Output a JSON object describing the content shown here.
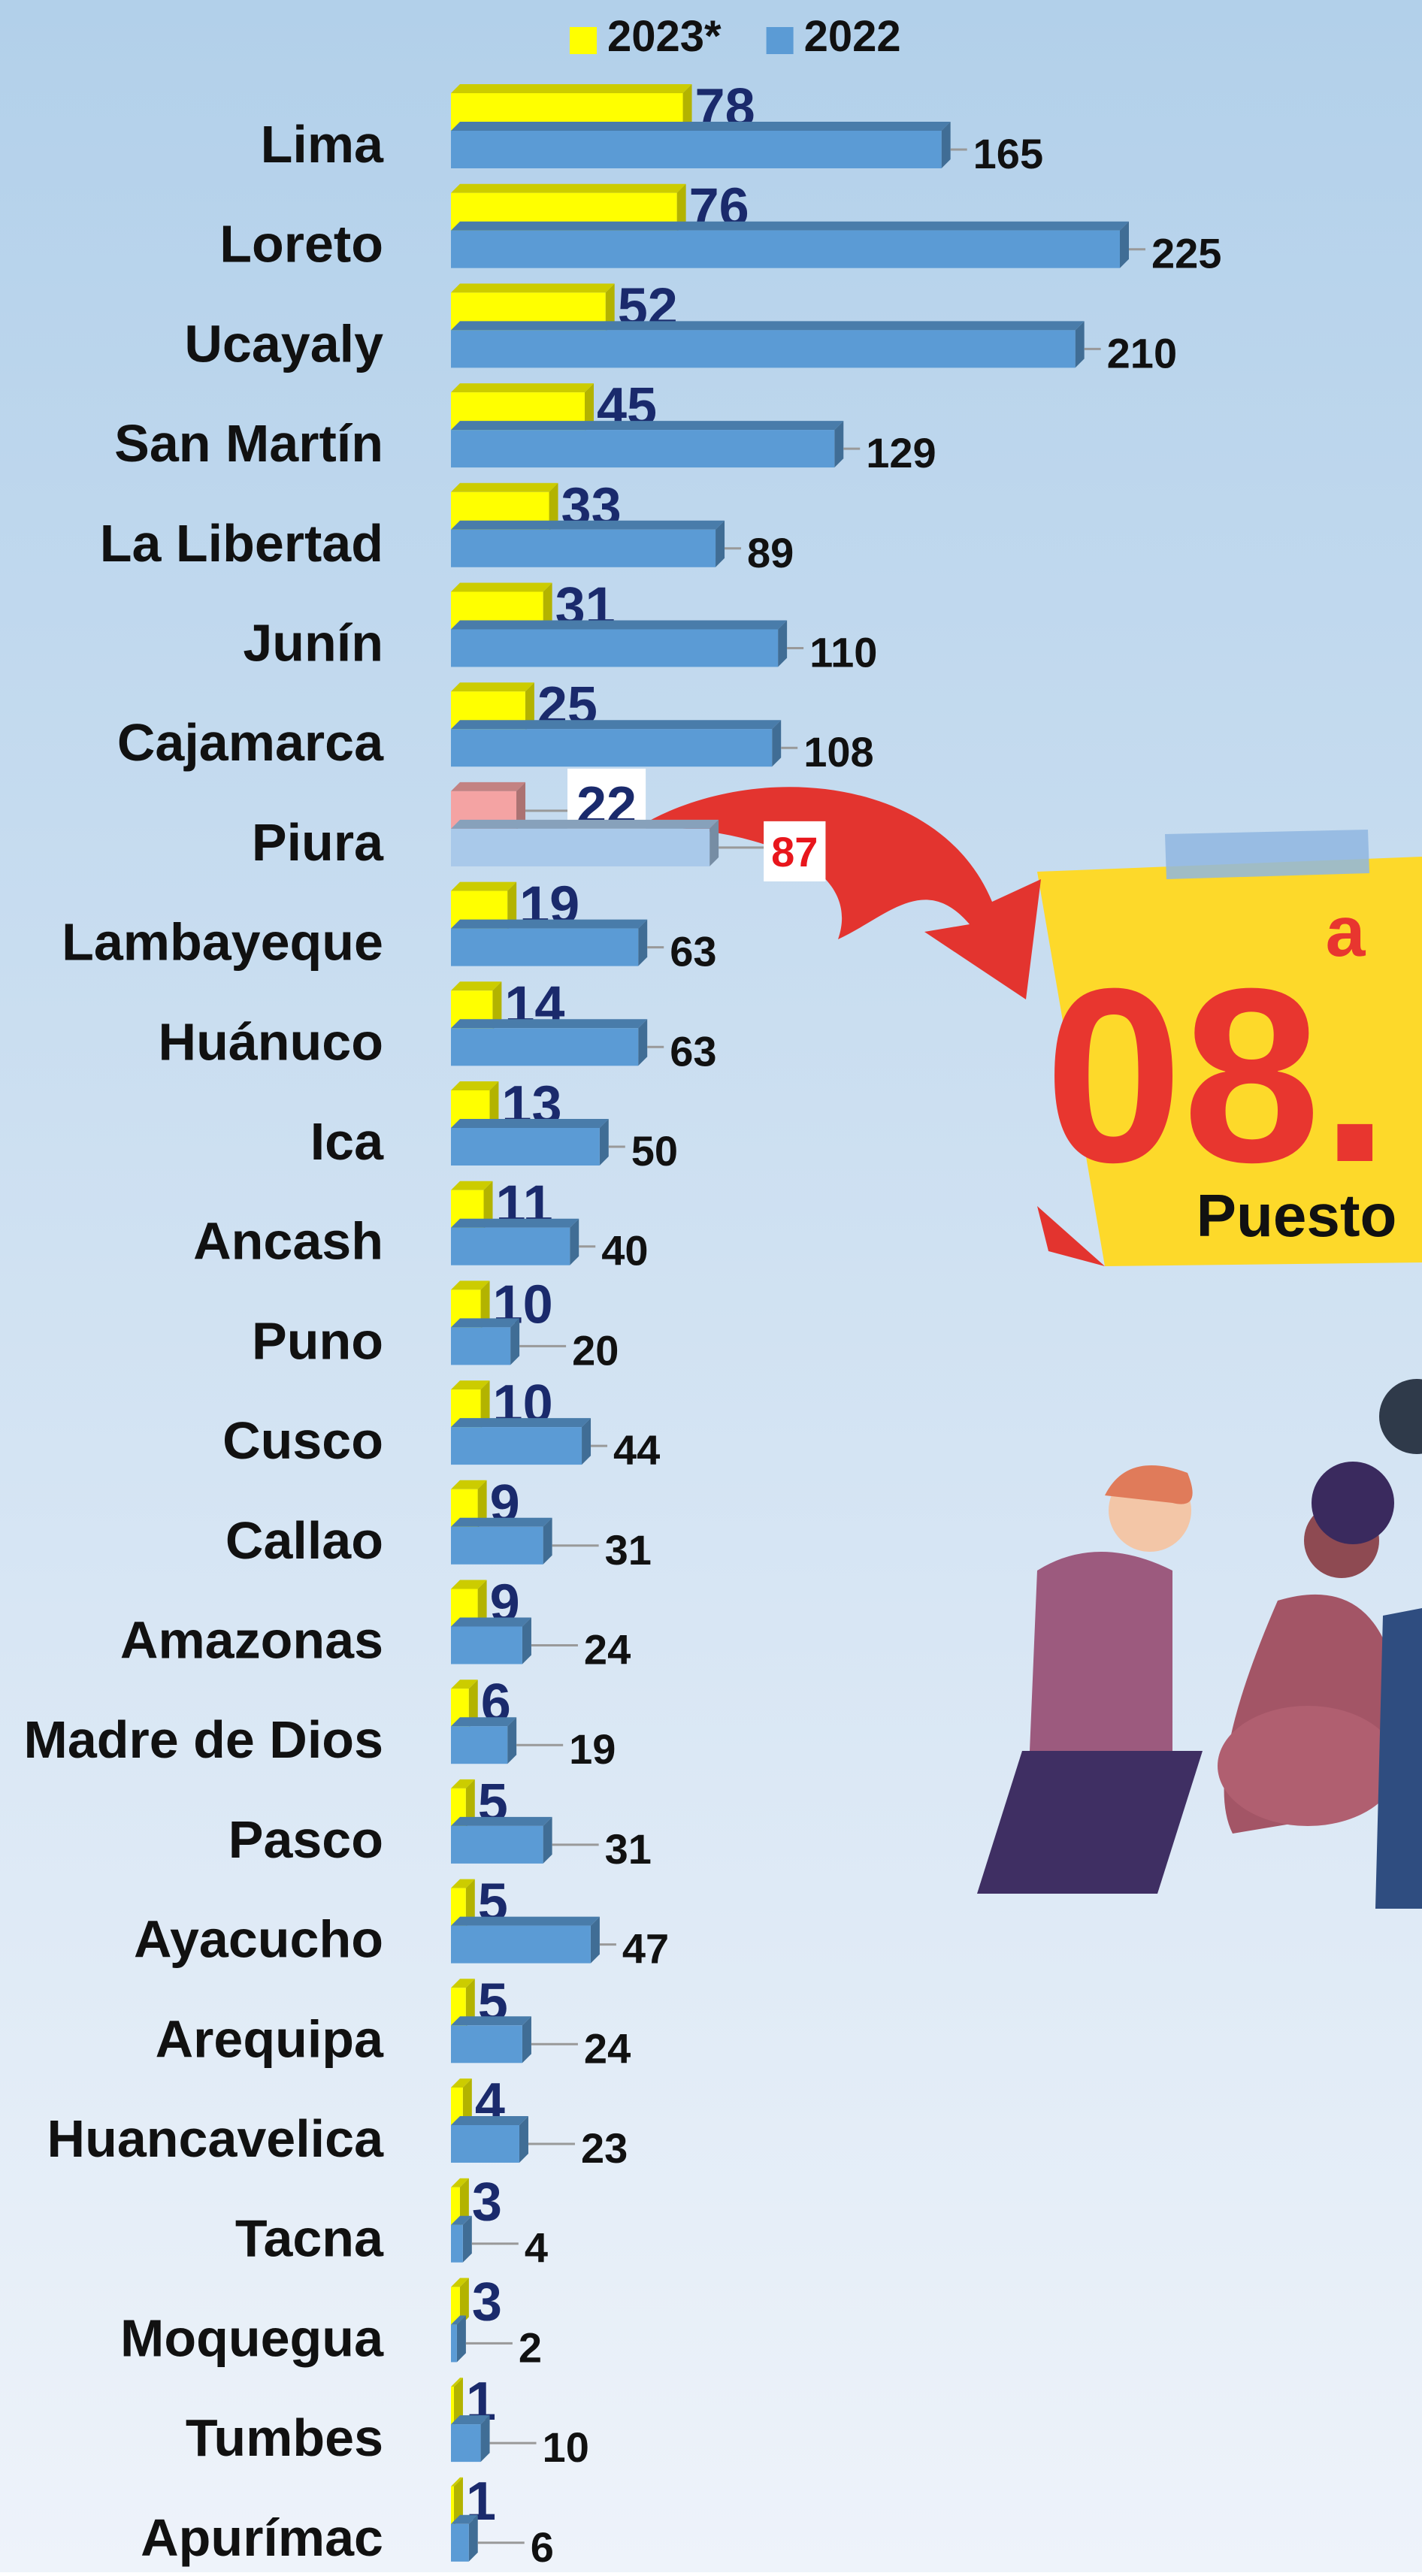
{
  "chart_data": {
    "type": "bar",
    "orientation": "horizontal",
    "categories": [
      "Lima",
      "Loreto",
      "Ucayaly",
      "San Martín",
      "La Libertad",
      "Junín",
      "Cajamarca",
      "Piura",
      "Lambayeque",
      "Huánuco",
      "Ica",
      "Ancash",
      "Puno",
      "Cusco",
      "Callao",
      "Amazonas",
      "Madre de Dios",
      "Pasco",
      "Ayacucho",
      "Arequipa",
      "Huancavelica",
      "Tacna",
      "Moquegua",
      "Tumbes",
      "Apurímac"
    ],
    "series": [
      {
        "name": "2023*",
        "color": "#ffff00",
        "label_color": "#1a2a6c",
        "highlight_color": "#f4a3a3",
        "values": [
          78,
          76,
          52,
          45,
          33,
          31,
          25,
          22,
          19,
          14,
          13,
          11,
          10,
          10,
          9,
          9,
          6,
          5,
          5,
          5,
          4,
          3,
          3,
          1,
          1
        ]
      },
      {
        "name": "2022",
        "color": "#5b9bd5",
        "label_color": "#111111",
        "highlight_color": "#a9c9ea",
        "highlight_label_color": "#e8161c",
        "values": [
          165,
          225,
          210,
          129,
          89,
          110,
          108,
          87,
          63,
          63,
          50,
          40,
          20,
          44,
          31,
          24,
          19,
          31,
          47,
          24,
          23,
          4,
          2,
          10,
          6
        ]
      }
    ],
    "highlight_category": "Piura",
    "legend": "top"
  },
  "badge": {
    "rank": "08.",
    "suffix": "a",
    "label": "Puesto"
  }
}
